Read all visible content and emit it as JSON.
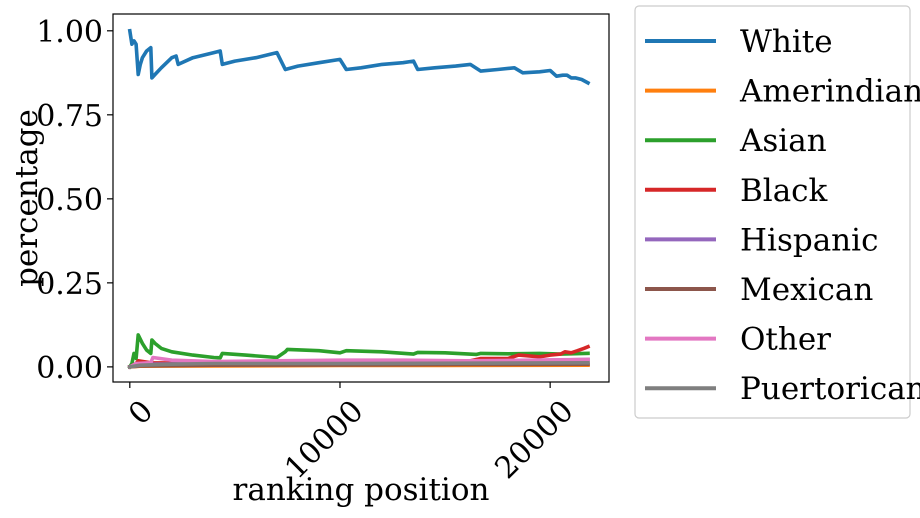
{
  "chart_data": {
    "type": "line",
    "xlabel": "ranking position",
    "ylabel": "percentage",
    "xlim": [
      -800,
      22800
    ],
    "ylim": [
      -0.045,
      1.05
    ],
    "xticks": [
      0,
      10000,
      20000
    ],
    "xtick_labels": [
      "0",
      "10000",
      "20000"
    ],
    "yticks": [
      0.0,
      0.25,
      0.5,
      0.75,
      1.0
    ],
    "ytick_labels": [
      "0.00",
      "0.25",
      "0.50",
      "0.75",
      "1.00"
    ],
    "grid": false,
    "legend_position": "outside-right",
    "series": [
      {
        "name": "White",
        "color": "#1f77b4",
        "x": [
          0,
          100,
          200,
          300,
          400,
          500,
          600,
          800,
          1000,
          1050,
          1200,
          1500,
          2000,
          2200,
          2300,
          3000,
          4000,
          4300,
          4400,
          5000,
          6000,
          7000,
          7400,
          8000,
          9000,
          10000,
          10300,
          11000,
          12000,
          13000,
          13500,
          13700,
          14500,
          15500,
          16200,
          16700,
          17500,
          18300,
          18700,
          19500,
          20000,
          20300,
          20600,
          20800,
          21000,
          21200,
          21500,
          21800
        ],
        "y": [
          1.0,
          0.96,
          0.97,
          0.96,
          0.87,
          0.9,
          0.92,
          0.94,
          0.95,
          0.86,
          0.87,
          0.89,
          0.92,
          0.925,
          0.9,
          0.92,
          0.935,
          0.94,
          0.9,
          0.91,
          0.92,
          0.935,
          0.885,
          0.895,
          0.905,
          0.915,
          0.885,
          0.89,
          0.9,
          0.905,
          0.91,
          0.885,
          0.89,
          0.895,
          0.9,
          0.88,
          0.885,
          0.89,
          0.875,
          0.878,
          0.882,
          0.865,
          0.868,
          0.868,
          0.86,
          0.86,
          0.855,
          0.845
        ]
      },
      {
        "name": "Amerindian",
        "color": "#ff7f0e",
        "x": [
          0,
          500,
          4000,
          10000,
          15000,
          21800
        ],
        "y": [
          0.0,
          0.002,
          0.003,
          0.004,
          0.004,
          0.005
        ]
      },
      {
        "name": "Asian",
        "color": "#2ca02c",
        "x": [
          0,
          100,
          200,
          300,
          400,
          600,
          800,
          1000,
          1050,
          1200,
          1500,
          2000,
          3000,
          4000,
          4300,
          4400,
          5500,
          7000,
          7400,
          7500,
          9000,
          10000,
          10300,
          12000,
          13500,
          13700,
          15000,
          16500,
          16700,
          18000,
          19500,
          20500,
          21800
        ],
        "y": [
          0.0,
          0.01,
          0.04,
          0.025,
          0.095,
          0.07,
          0.05,
          0.04,
          0.08,
          0.07,
          0.055,
          0.045,
          0.035,
          0.028,
          0.027,
          0.04,
          0.035,
          0.028,
          0.045,
          0.052,
          0.048,
          0.042,
          0.048,
          0.045,
          0.038,
          0.043,
          0.042,
          0.037,
          0.04,
          0.039,
          0.04,
          0.038,
          0.04
        ]
      },
      {
        "name": "Black",
        "color": "#d62728",
        "x": [
          0,
          300,
          400,
          1000,
          4000,
          10000,
          16000,
          16700,
          18000,
          18500,
          19500,
          20000,
          20500,
          20700,
          21000,
          21300,
          21600,
          21800
        ],
        "y": [
          0.0,
          0.01,
          0.018,
          0.012,
          0.01,
          0.012,
          0.015,
          0.025,
          0.025,
          0.035,
          0.03,
          0.035,
          0.038,
          0.045,
          0.042,
          0.048,
          0.055,
          0.06
        ]
      },
      {
        "name": "Hispanic",
        "color": "#9467bd",
        "x": [
          0,
          300,
          1000,
          4000,
          10000,
          16000,
          18000,
          20000,
          21800
        ],
        "y": [
          0.0,
          0.005,
          0.008,
          0.01,
          0.012,
          0.015,
          0.018,
          0.02,
          0.022
        ]
      },
      {
        "name": "Mexican",
        "color": "#8c564b",
        "x": [
          0,
          500,
          4000,
          10000,
          16000,
          21800
        ],
        "y": [
          0.0,
          0.003,
          0.005,
          0.006,
          0.007,
          0.008
        ]
      },
      {
        "name": "Other",
        "color": "#e377c2",
        "x": [
          0,
          300,
          1000,
          1100,
          2000,
          4000,
          7000,
          10000,
          13000,
          16000,
          19000,
          21800
        ],
        "y": [
          0.0,
          0.01,
          0.012,
          0.028,
          0.02,
          0.016,
          0.018,
          0.02,
          0.02,
          0.018,
          0.02,
          0.022
        ]
      },
      {
        "name": "Puertorican",
        "color": "#7f7f7f",
        "x": [
          0,
          500,
          2000,
          4000,
          10000,
          16000,
          21800
        ],
        "y": [
          0.0,
          0.005,
          0.008,
          0.01,
          0.01,
          0.011,
          0.012
        ]
      }
    ]
  }
}
